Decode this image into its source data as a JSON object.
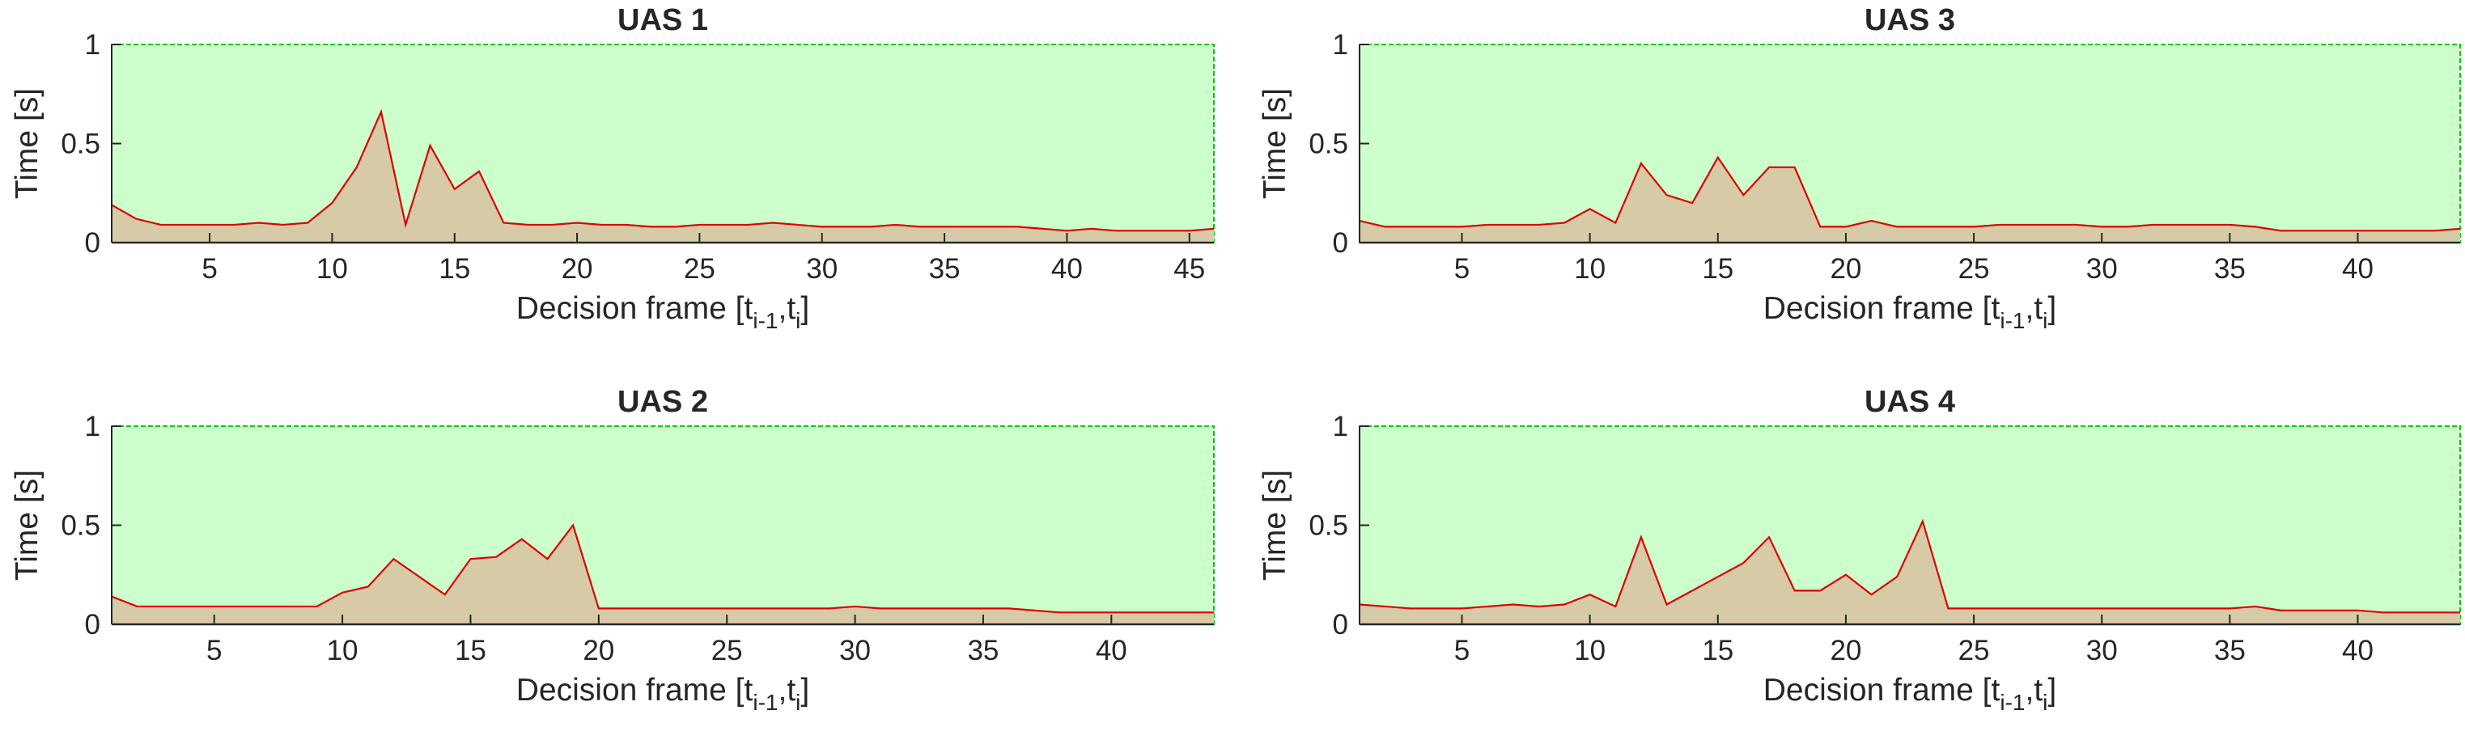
{
  "chart_data": [
    {
      "type": "area",
      "title": "UAS 1",
      "xlabel": {
        "main": "Decision frame [t",
        "sub1": "i-1",
        "mid": ",t",
        "sub2": "i",
        "end": "]"
      },
      "ylabel": "Time [s]",
      "xlim": [
        1,
        46
      ],
      "ylim": [
        0,
        1
      ],
      "xticks": [
        5,
        10,
        15,
        20,
        25,
        30,
        35,
        40,
        45
      ],
      "yticks": [
        0,
        0.5,
        1
      ],
      "ytick_labels": [
        "0",
        "0.5",
        "1"
      ],
      "upper_band": {
        "value": 1,
        "color": "#ccffcc",
        "edge_color": "#00cc00"
      },
      "series": [
        {
          "color": "#e00000",
          "fill": "#d6cba6",
          "x": [
            1,
            2,
            3,
            4,
            5,
            6,
            7,
            8,
            9,
            10,
            11,
            12,
            13,
            14,
            15,
            16,
            17,
            18,
            19,
            20,
            21,
            22,
            23,
            24,
            25,
            26,
            27,
            28,
            29,
            30,
            31,
            32,
            33,
            34,
            35,
            36,
            37,
            38,
            39,
            40,
            41,
            42,
            43,
            44,
            45,
            46
          ],
          "values": [
            0.19,
            0.12,
            0.09,
            0.09,
            0.09,
            0.09,
            0.1,
            0.09,
            0.1,
            0.2,
            0.38,
            0.66,
            0.09,
            0.49,
            0.27,
            0.36,
            0.1,
            0.09,
            0.09,
            0.1,
            0.09,
            0.09,
            0.08,
            0.08,
            0.09,
            0.09,
            0.09,
            0.1,
            0.09,
            0.08,
            0.08,
            0.08,
            0.09,
            0.08,
            0.08,
            0.08,
            0.08,
            0.08,
            0.07,
            0.06,
            0.07,
            0.06,
            0.06,
            0.06,
            0.06,
            0.07
          ]
        }
      ]
    },
    {
      "type": "area",
      "title": "UAS 3",
      "xlabel": {
        "main": "Decision frame [t",
        "sub1": "i-1",
        "mid": ",t",
        "sub2": "i",
        "end": "]"
      },
      "ylabel": "Time [s]",
      "xlim": [
        1,
        44
      ],
      "ylim": [
        0,
        1
      ],
      "xticks": [
        5,
        10,
        15,
        20,
        25,
        30,
        35,
        40
      ],
      "yticks": [
        0,
        0.5,
        1
      ],
      "ytick_labels": [
        "0",
        "0.5",
        "1"
      ],
      "upper_band": {
        "value": 1,
        "color": "#ccffcc",
        "edge_color": "#00cc00"
      },
      "series": [
        {
          "color": "#e00000",
          "fill": "#d6cba6",
          "x": [
            1,
            2,
            3,
            4,
            5,
            6,
            7,
            8,
            9,
            10,
            11,
            12,
            13,
            14,
            15,
            16,
            17,
            18,
            19,
            20,
            21,
            22,
            23,
            24,
            25,
            26,
            27,
            28,
            29,
            30,
            31,
            32,
            33,
            34,
            35,
            36,
            37,
            38,
            39,
            40,
            41,
            42,
            43,
            44
          ],
          "values": [
            0.11,
            0.08,
            0.08,
            0.08,
            0.08,
            0.09,
            0.09,
            0.09,
            0.1,
            0.17,
            0.1,
            0.4,
            0.24,
            0.2,
            0.43,
            0.24,
            0.38,
            0.38,
            0.08,
            0.08,
            0.11,
            0.08,
            0.08,
            0.08,
            0.08,
            0.09,
            0.09,
            0.09,
            0.09,
            0.08,
            0.08,
            0.09,
            0.09,
            0.09,
            0.09,
            0.08,
            0.06,
            0.06,
            0.06,
            0.06,
            0.06,
            0.06,
            0.06,
            0.07
          ]
        }
      ]
    },
    {
      "type": "area",
      "title": "UAS 2",
      "xlabel": {
        "main": "Decision frame [t",
        "sub1": "i-1",
        "mid": ",t",
        "sub2": "i",
        "end": "]"
      },
      "ylabel": "Time [s]",
      "xlim": [
        1,
        44
      ],
      "ylim": [
        0,
        1
      ],
      "xticks": [
        5,
        10,
        15,
        20,
        25,
        30,
        35,
        40
      ],
      "yticks": [
        0,
        0.5,
        1
      ],
      "ytick_labels": [
        "0",
        "0.5",
        "1"
      ],
      "upper_band": {
        "value": 1,
        "color": "#ccffcc",
        "edge_color": "#00cc00"
      },
      "series": [
        {
          "color": "#e00000",
          "fill": "#d6cba6",
          "x": [
            1,
            2,
            3,
            4,
            5,
            6,
            7,
            8,
            9,
            10,
            11,
            12,
            13,
            14,
            15,
            16,
            17,
            18,
            19,
            20,
            21,
            22,
            23,
            24,
            25,
            26,
            27,
            28,
            29,
            30,
            31,
            32,
            33,
            34,
            35,
            36,
            37,
            38,
            39,
            40,
            41,
            42,
            43,
            44
          ],
          "values": [
            0.14,
            0.09,
            0.09,
            0.09,
            0.09,
            0.09,
            0.09,
            0.09,
            0.09,
            0.16,
            0.19,
            0.33,
            0.24,
            0.15,
            0.33,
            0.34,
            0.43,
            0.33,
            0.5,
            0.08,
            0.08,
            0.08,
            0.08,
            0.08,
            0.08,
            0.08,
            0.08,
            0.08,
            0.08,
            0.09,
            0.08,
            0.08,
            0.08,
            0.08,
            0.08,
            0.08,
            0.07,
            0.06,
            0.06,
            0.06,
            0.06,
            0.06,
            0.06,
            0.06
          ]
        }
      ]
    },
    {
      "type": "area",
      "title": "UAS 4",
      "xlabel": {
        "main": "Decision frame [t",
        "sub1": "i-1",
        "mid": ",t",
        "sub2": "i",
        "end": "]"
      },
      "ylabel": "Time [s]",
      "xlim": [
        1,
        44
      ],
      "ylim": [
        0,
        1
      ],
      "xticks": [
        5,
        10,
        15,
        20,
        25,
        30,
        35,
        40
      ],
      "yticks": [
        0,
        0.5,
        1
      ],
      "ytick_labels": [
        "0",
        "0.5",
        "1"
      ],
      "upper_band": {
        "value": 1,
        "color": "#ccffcc",
        "edge_color": "#00cc00"
      },
      "series": [
        {
          "color": "#e00000",
          "fill": "#d6cba6",
          "x": [
            1,
            2,
            3,
            4,
            5,
            6,
            7,
            8,
            9,
            10,
            11,
            12,
            13,
            14,
            15,
            16,
            17,
            18,
            19,
            20,
            21,
            22,
            23,
            24,
            25,
            26,
            27,
            28,
            29,
            30,
            31,
            32,
            33,
            34,
            35,
            36,
            37,
            38,
            39,
            40,
            41,
            42,
            43,
            44
          ],
          "values": [
            0.1,
            0.09,
            0.08,
            0.08,
            0.08,
            0.09,
            0.1,
            0.09,
            0.1,
            0.15,
            0.09,
            0.44,
            0.1,
            0.17,
            0.24,
            0.31,
            0.44,
            0.17,
            0.17,
            0.25,
            0.15,
            0.24,
            0.52,
            0.08,
            0.08,
            0.08,
            0.08,
            0.08,
            0.08,
            0.08,
            0.08,
            0.08,
            0.08,
            0.08,
            0.08,
            0.09,
            0.07,
            0.07,
            0.07,
            0.07,
            0.06,
            0.06,
            0.06,
            0.06
          ]
        }
      ]
    }
  ]
}
